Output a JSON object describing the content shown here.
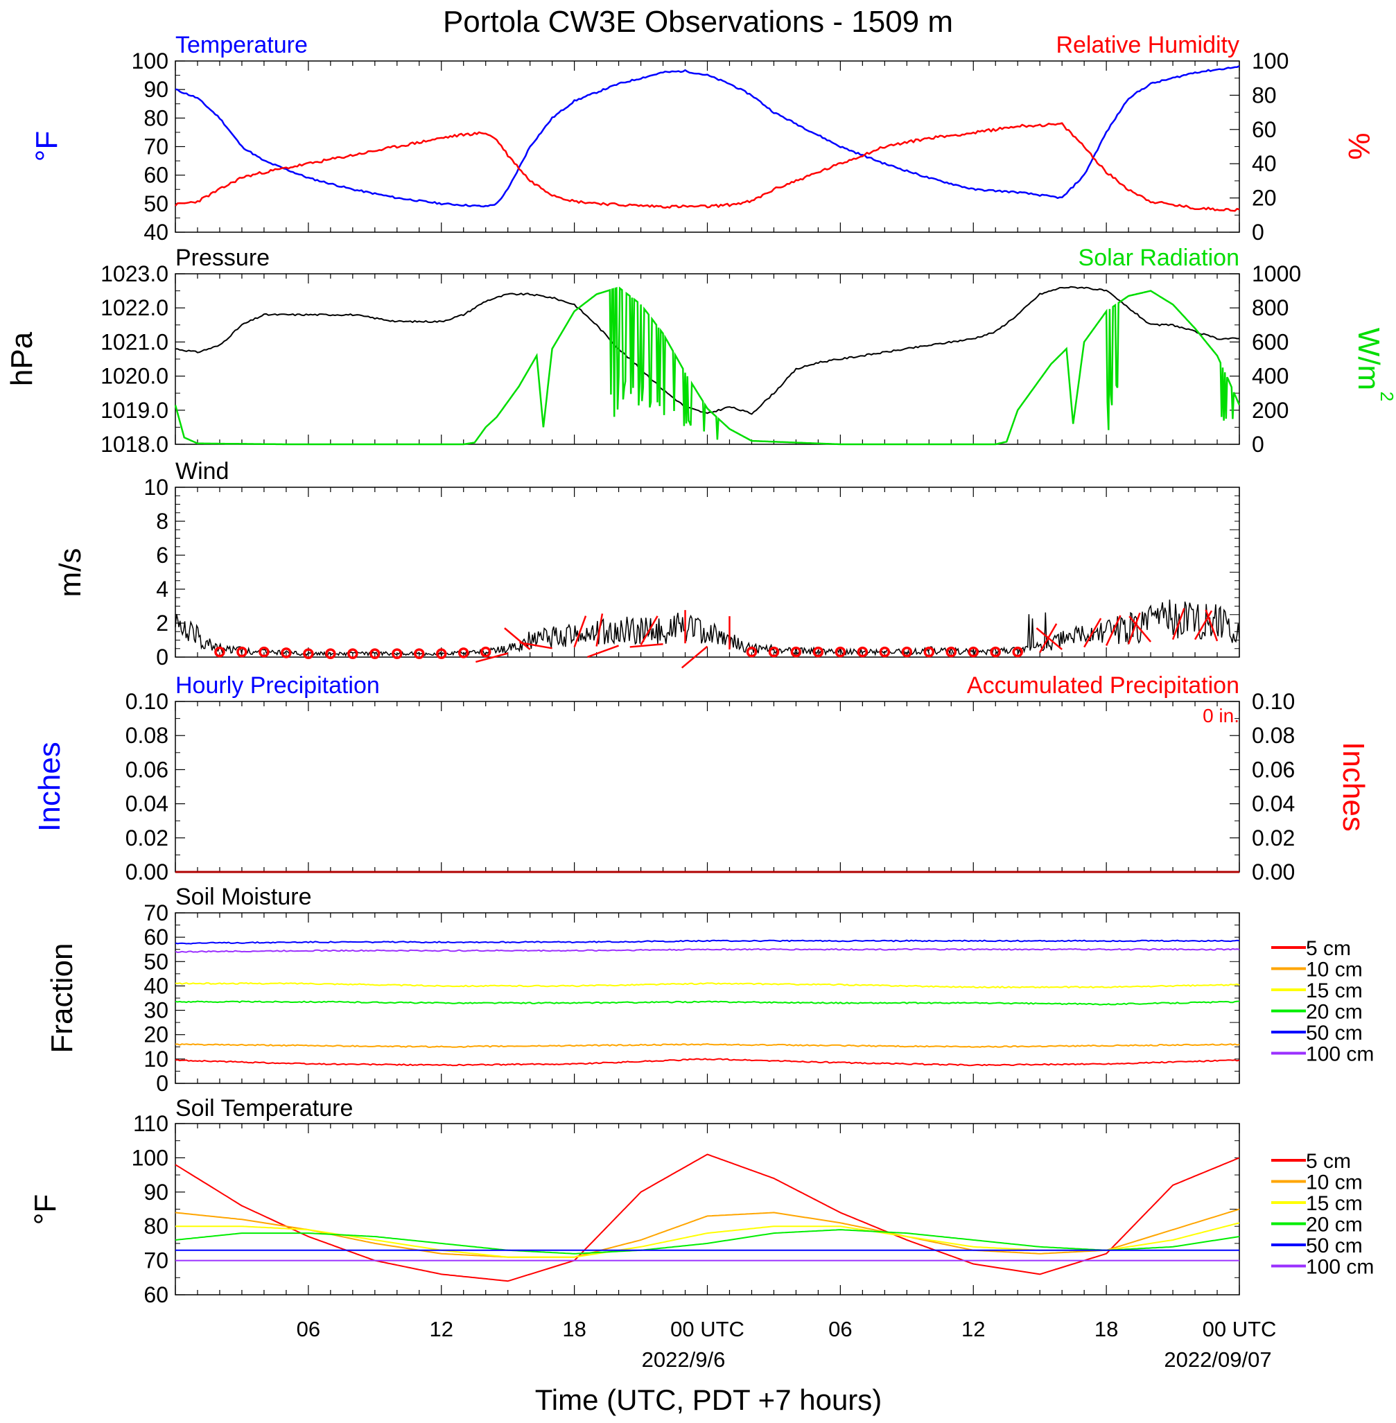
{
  "figure": {
    "title": "Portola CW3E Observations - 1509 m",
    "xlabel": "Time (UTC, PDT +7 hours)",
    "x_ticks": [
      "06",
      "12",
      "18",
      "00 UTC",
      "06",
      "12",
      "18",
      "00 UTC"
    ],
    "x_dates": [
      "2022/9/6",
      "2022/09/07"
    ]
  },
  "colors": {
    "temperature": "#0000ff",
    "humidity": "#ff0000",
    "pressure": "#000000",
    "solar": "#00dd00",
    "wind": "#000000",
    "barbs": "#ff0000",
    "depth_5cm": "#ff0000",
    "depth_10cm": "#ffa500",
    "depth_15cm": "#ffff00",
    "depth_20cm": "#00ee00",
    "depth_50cm": "#0000ff",
    "depth_100cm": "#9b30ff"
  },
  "chart_data": [
    {
      "id": "temp_rh",
      "type": "line",
      "left_label": "Temperature",
      "right_label": "Relative Humidity",
      "left_unit": "°F",
      "right_unit": "%",
      "ylim_left": [
        40,
        100
      ],
      "ylim_right": [
        0,
        100
      ],
      "left_ticks": [
        "40",
        "50",
        "60",
        "70",
        "80",
        "90",
        "100"
      ],
      "right_ticks": [
        "0",
        "20",
        "40",
        "60",
        "80",
        "100"
      ],
      "x_hours": [
        0,
        1,
        2,
        3,
        4,
        6,
        8,
        10,
        12,
        13,
        14,
        14.5,
        15,
        16,
        17,
        18,
        20,
        22,
        23,
        24,
        25,
        26,
        27,
        28,
        29,
        30,
        32,
        34,
        36,
        38,
        40,
        41,
        42,
        43,
        44,
        46,
        48
      ],
      "series": [
        {
          "name": "Temperature",
          "axis": "left",
          "values": [
            90,
            87,
            80,
            70,
            65,
            59,
            55,
            52,
            50,
            49.5,
            49,
            50,
            55,
            70,
            80,
            86,
            92,
            96,
            96.5,
            95,
            92,
            88,
            82,
            78,
            74,
            70,
            64,
            59,
            55,
            54,
            52,
            60,
            75,
            87,
            92,
            96,
            98
          ]
        },
        {
          "name": "Relative Humidity",
          "axis": "right",
          "values": [
            16,
            18,
            25,
            32,
            35,
            40,
            45,
            50,
            55,
            57,
            58,
            54,
            45,
            30,
            22,
            18,
            16,
            15,
            15,
            15,
            16,
            18,
            25,
            30,
            35,
            40,
            50,
            55,
            58,
            62,
            63,
            50,
            35,
            25,
            18,
            14,
            13
          ]
        }
      ]
    },
    {
      "id": "pressure_solar",
      "type": "line",
      "left_label": "Pressure",
      "right_label": "Solar Radiation",
      "left_unit": "hPa",
      "right_unit": "W/m",
      "right_unit_sup": "2",
      "ylim_left": [
        1018.0,
        1023.0
      ],
      "ylim_right": [
        0,
        1000
      ],
      "left_ticks": [
        "1018.0",
        "1019.0",
        "1020.0",
        "1021.0",
        "1022.0",
        "1023.0"
      ],
      "right_ticks": [
        "0",
        "200",
        "400",
        "600",
        "800",
        "1000"
      ],
      "series": [
        {
          "name": "Pressure",
          "axis": "left",
          "x_hours": [
            0,
            1,
            2,
            3,
            4,
            6,
            8,
            10,
            12,
            13,
            14,
            15,
            16,
            17,
            18,
            19,
            20,
            21,
            22,
            23,
            24,
            25,
            26,
            27,
            28,
            29,
            30,
            32,
            34,
            36,
            37,
            38,
            39,
            40,
            41,
            42,
            43,
            44,
            45,
            46,
            47,
            48
          ],
          "values": [
            1020.8,
            1020.7,
            1020.9,
            1021.5,
            1021.8,
            1021.8,
            1021.8,
            1021.6,
            1021.6,
            1021.8,
            1022.2,
            1022.4,
            1022.4,
            1022.3,
            1022.1,
            1021.5,
            1020.8,
            1020.2,
            1019.6,
            1019.1,
            1018.9,
            1019.1,
            1018.9,
            1019.5,
            1020.2,
            1020.4,
            1020.5,
            1020.7,
            1020.9,
            1021.1,
            1021.3,
            1021.8,
            1022.4,
            1022.6,
            1022.6,
            1022.5,
            1022.0,
            1021.5,
            1021.5,
            1021.3,
            1021.1,
            1021.1
          ]
        },
        {
          "name": "Solar Radiation",
          "axis": "right",
          "x_hours": [
            0,
            0.4,
            1,
            5,
            8,
            12,
            13,
            13.5,
            14,
            14.5,
            15.5,
            16.3,
            16.6,
            17,
            18,
            19,
            20,
            21,
            22,
            23,
            24,
            25,
            26,
            30,
            36,
            37,
            37.5,
            38,
            39.5,
            40.2,
            40.5,
            41,
            42,
            43,
            44,
            45,
            46,
            47,
            47.5,
            48
          ],
          "values": [
            230,
            40,
            5,
            0,
            0,
            0,
            0,
            10,
            100,
            160,
            340,
            520,
            100,
            560,
            780,
            880,
            920,
            820,
            650,
            420,
            210,
            90,
            20,
            0,
            0,
            0,
            15,
            200,
            470,
            560,
            120,
            600,
            780,
            870,
            900,
            820,
            680,
            520,
            380,
            230
          ]
        }
      ]
    },
    {
      "id": "wind",
      "type": "line",
      "label": "Wind",
      "unit": "m/s",
      "ylim": [
        0,
        10
      ],
      "ticks": [
        "0",
        "2",
        "4",
        "6",
        "8",
        "10"
      ],
      "x_hours": [
        0,
        1,
        2,
        4,
        6,
        8,
        10,
        12,
        14,
        15,
        16,
        18,
        20,
        22,
        23,
        24,
        25,
        26,
        28,
        30,
        32,
        34,
        36,
        38,
        39,
        40,
        41,
        42,
        43,
        44,
        45,
        46,
        47,
        48
      ],
      "values": [
        1.8,
        1.2,
        0.5,
        0.3,
        0.2,
        0.2,
        0.2,
        0.2,
        0.3,
        0.5,
        1.0,
        1.3,
        1.5,
        1.7,
        1.8,
        1.4,
        1.0,
        0.5,
        0.4,
        0.3,
        0.3,
        0.4,
        0.3,
        0.4,
        0.6,
        1.0,
        1.3,
        1.5,
        1.7,
        2.0,
        2.3,
        2.3,
        2.1,
        1.5
      ],
      "calm_hours": [
        2,
        3,
        4,
        5,
        6,
        7,
        8,
        9,
        10,
        11,
        12,
        13,
        14,
        26,
        27,
        28,
        29,
        30,
        31,
        32,
        33,
        34,
        35,
        36,
        37,
        38
      ],
      "barbs": [
        {
          "hour": 15,
          "ang": 195
        },
        {
          "hour": 16,
          "ang": 140
        },
        {
          "hour": 17,
          "ang": 170
        },
        {
          "hour": 18,
          "ang": 70
        },
        {
          "hour": 19,
          "ang": 80
        },
        {
          "hour": 20,
          "ang": 200
        },
        {
          "hour": 21,
          "ang": 60
        },
        {
          "hour": 22,
          "ang": 185
        },
        {
          "hour": 23,
          "ang": 90
        },
        {
          "hour": 24,
          "ang": 220
        },
        {
          "hour": 25,
          "ang": 90
        },
        {
          "hour": 39,
          "ang": 60
        },
        {
          "hour": 40,
          "ang": 140
        },
        {
          "hour": 41,
          "ang": 60
        },
        {
          "hour": 42,
          "ang": 65
        },
        {
          "hour": 43,
          "ang": 70
        },
        {
          "hour": 44,
          "ang": 130
        },
        {
          "hour": 45,
          "ang": 70
        },
        {
          "hour": 46,
          "ang": 60
        },
        {
          "hour": 47,
          "ang": 110
        }
      ]
    },
    {
      "id": "precip",
      "type": "line",
      "left_label": "Hourly Precipitation",
      "right_label": "Accumulated Precipitation",
      "accum_text": "0 in.",
      "left_unit": "Inches",
      "right_unit": "Inches",
      "ylim": [
        0,
        0.1
      ],
      "ticks": [
        "0.00",
        "0.02",
        "0.04",
        "0.06",
        "0.08",
        "0.10"
      ],
      "series": [
        {
          "name": "Hourly Precipitation",
          "values": [
            0,
            0
          ]
        },
        {
          "name": "Accumulated Precipitation",
          "values": [
            0,
            0
          ]
        }
      ]
    },
    {
      "id": "soil_moisture",
      "type": "line",
      "label": "Soil Moisture",
      "unit": "Fraction",
      "ylim": [
        0,
        70
      ],
      "ticks": [
        "0",
        "10",
        "20",
        "30",
        "40",
        "50",
        "60",
        "70"
      ],
      "legend": [
        "5 cm",
        "10 cm",
        "15 cm",
        "20 cm",
        "50 cm",
        "100 cm"
      ],
      "x_hours": [
        0,
        6,
        12,
        18,
        24,
        30,
        36,
        42,
        48
      ],
      "series": [
        {
          "name": "5 cm",
          "values": [
            9.5,
            8.0,
            7.5,
            8.0,
            10.0,
            8.5,
            7.5,
            8.0,
            9.5
          ]
        },
        {
          "name": "10 cm",
          "values": [
            16.0,
            15.5,
            15.0,
            15.5,
            16.0,
            15.5,
            15.0,
            15.5,
            16.0
          ]
        },
        {
          "name": "15 cm",
          "values": [
            41.0,
            41.0,
            40.0,
            40.0,
            41.0,
            40.5,
            39.5,
            39.5,
            40.5
          ]
        },
        {
          "name": "20 cm",
          "values": [
            33.5,
            33.5,
            33.0,
            33.0,
            33.5,
            33.0,
            33.0,
            32.5,
            33.5
          ]
        },
        {
          "name": "50 cm",
          "values": [
            57.5,
            58.0,
            58.0,
            58.0,
            58.5,
            58.5,
            58.5,
            58.5,
            58.5
          ]
        },
        {
          "name": "100 cm",
          "values": [
            54.0,
            54.5,
            54.5,
            54.5,
            55.0,
            55.0,
            55.0,
            55.0,
            55.0
          ]
        }
      ]
    },
    {
      "id": "soil_temperature",
      "type": "line",
      "label": "Soil Temperature",
      "unit": "°F",
      "ylim": [
        60,
        110
      ],
      "ticks": [
        "60",
        "70",
        "80",
        "90",
        "100",
        "110"
      ],
      "legend": [
        "5 cm",
        "10 cm",
        "15 cm",
        "20 cm",
        "50 cm",
        "100 cm"
      ],
      "x_hours": [
        0,
        3,
        6,
        9,
        12,
        15,
        18,
        21,
        24,
        27,
        30,
        33,
        36,
        39,
        42,
        45,
        48
      ],
      "series": [
        {
          "name": "5 cm",
          "values": [
            98,
            86,
            77,
            70,
            66,
            64,
            70,
            90,
            101,
            94,
            84,
            76,
            69,
            66,
            72,
            92,
            100
          ]
        },
        {
          "name": "10 cm",
          "values": [
            84,
            82,
            79,
            75,
            72,
            71,
            71,
            76,
            83,
            84,
            81,
            77,
            73,
            72,
            73,
            79,
            85
          ]
        },
        {
          "name": "15 cm",
          "values": [
            80,
            80,
            79,
            76,
            73,
            71,
            71,
            74,
            78,
            80,
            80,
            77,
            74,
            73,
            73,
            76,
            81
          ]
        },
        {
          "name": "20 cm",
          "values": [
            76,
            78,
            78,
            77,
            75,
            73,
            72,
            73,
            75,
            78,
            79,
            78,
            76,
            74,
            73,
            74,
            77
          ]
        },
        {
          "name": "50 cm",
          "values": [
            73,
            73,
            73,
            73,
            73,
            73,
            73,
            73,
            73,
            73,
            73,
            73,
            73,
            73,
            73,
            73,
            73
          ]
        },
        {
          "name": "100 cm",
          "values": [
            70,
            70,
            70,
            70,
            70,
            70,
            70,
            70,
            70,
            70,
            70,
            70,
            70,
            70,
            70,
            70,
            70
          ]
        }
      ]
    }
  ]
}
